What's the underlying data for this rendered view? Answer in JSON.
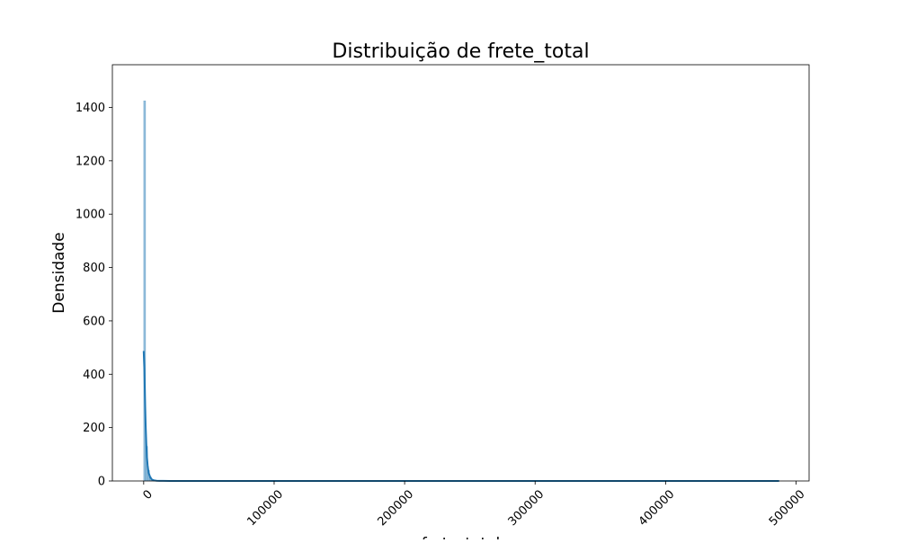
{
  "chart_data": {
    "type": "area",
    "title": "Distribuição de frete_total",
    "xlabel": "frete_total",
    "ylabel": "Densidade",
    "xlim": [
      -24000,
      510000
    ],
    "ylim": [
      0,
      1560
    ],
    "xticks": [
      0,
      100000,
      200000,
      300000,
      400000,
      500000
    ],
    "yticks": [
      0,
      200,
      400,
      600,
      800,
      1000,
      1200,
      1400
    ],
    "grid": false,
    "legend": "none",
    "colors": {
      "fill": "#1f77b4",
      "line": "#1f77b4"
    },
    "histogram": {
      "bins": [
        {
          "x": 0,
          "height": 1425
        },
        {
          "x": 1500,
          "height": 130
        },
        {
          "x": 3000,
          "height": 40
        },
        {
          "x": 4500,
          "height": 15
        },
        {
          "x": 6000,
          "height": 6
        },
        {
          "x": 7500,
          "height": 3
        },
        {
          "x": 9000,
          "height": 2
        },
        {
          "x": 10500,
          "height": 1
        },
        {
          "x": 12000,
          "height": 1
        }
      ],
      "range": [
        0,
        487000
      ]
    },
    "kde": {
      "x": [
        0,
        500,
        1000,
        1500,
        2000,
        2500,
        3000,
        3500,
        4000,
        5000,
        6000,
        7000,
        8000,
        10000,
        12000,
        15000,
        20000,
        50000,
        100000,
        200000,
        300000,
        400000,
        487000
      ],
      "y": [
        487,
        420,
        310,
        210,
        140,
        90,
        60,
        40,
        28,
        14,
        7,
        4,
        2,
        1,
        0.5,
        0.3,
        0.2,
        0.1,
        0.05,
        0.05,
        0.05,
        0.05,
        0.05
      ]
    }
  }
}
